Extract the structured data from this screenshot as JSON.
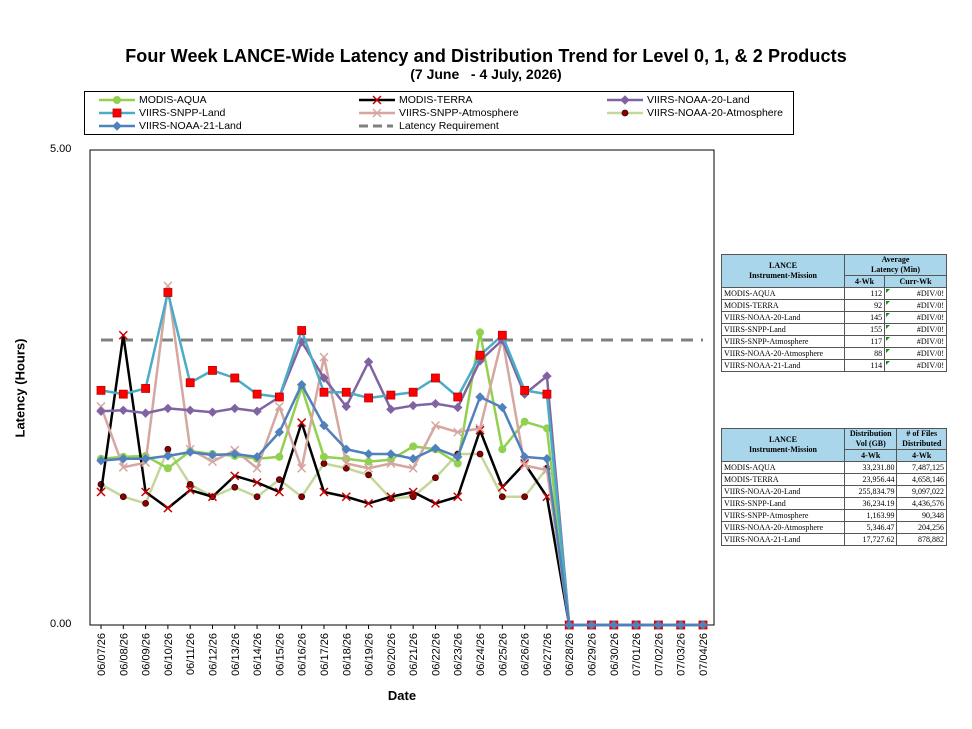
{
  "chart_data": {
    "type": "line",
    "title": "Four Week LANCE-Wide Latency and Distribution Trend for Level 0, 1, & 2 Products",
    "subtitle": "(7 June   - 4 July, 2026)",
    "xlabel": "Date",
    "ylabel": "Latency (Hours)",
    "ylim": [
      0,
      5
    ],
    "yticks": [
      "0.00",
      "5.00"
    ],
    "grid": false,
    "legend_position": "top",
    "categories": [
      "06/07/26",
      "06/08/26",
      "06/09/26",
      "06/10/26",
      "06/11/26",
      "06/12/26",
      "06/13/26",
      "06/14/26",
      "06/15/26",
      "06/16/26",
      "06/17/26",
      "06/18/26",
      "06/19/26",
      "06/20/26",
      "06/21/26",
      "06/22/26",
      "06/23/26",
      "06/24/26",
      "06/25/26",
      "06/26/26",
      "06/27/26",
      "06/28/26",
      "06/29/26",
      "06/30/26",
      "07/01/26",
      "07/02/26",
      "07/03/26",
      "07/04/26"
    ],
    "series": [
      {
        "name": "MODIS-AQUA",
        "color": "#92d050",
        "marker": "circle",
        "values": [
          1.75,
          1.77,
          1.78,
          1.65,
          1.83,
          1.8,
          1.78,
          1.75,
          1.77,
          2.5,
          1.77,
          1.75,
          1.72,
          1.74,
          1.88,
          1.85,
          1.7,
          3.08,
          1.85,
          2.14,
          2.07,
          0,
          0,
          0,
          0,
          0,
          0,
          0
        ]
      },
      {
        "name": "MODIS-TERRA",
        "color": "#000000",
        "marker": "x",
        "values": [
          1.4,
          3.05,
          1.4,
          1.23,
          1.42,
          1.35,
          1.57,
          1.5,
          1.4,
          2.13,
          1.4,
          1.35,
          1.28,
          1.35,
          1.4,
          1.28,
          1.35,
          2.05,
          1.45,
          1.7,
          1.35,
          0,
          0,
          0,
          0,
          0,
          0,
          0
        ]
      },
      {
        "name": "VIIRS-NOAA-20-Land",
        "color": "#8064a2",
        "marker": "diamond",
        "values": [
          2.25,
          2.26,
          2.23,
          2.28,
          2.26,
          2.24,
          2.28,
          2.25,
          2.4,
          2.98,
          2.6,
          2.3,
          2.77,
          2.27,
          2.31,
          2.33,
          2.29,
          2.78,
          3.0,
          2.43,
          2.62,
          0,
          0,
          0,
          0,
          0,
          0,
          0
        ]
      },
      {
        "name": "VIIRS-SNPP-Land",
        "color": "#4bacc6",
        "marker": "square",
        "values": [
          2.47,
          2.43,
          2.49,
          3.5,
          2.55,
          2.68,
          2.6,
          2.43,
          2.4,
          3.1,
          2.45,
          2.45,
          2.39,
          2.42,
          2.45,
          2.6,
          2.4,
          2.84,
          3.05,
          2.47,
          2.43,
          0,
          0,
          0,
          0,
          0,
          0,
          0
        ]
      },
      {
        "name": "VIIRS-SNPP-Atmosphere",
        "color": "#d6a6a0",
        "marker": "x",
        "values": [
          2.3,
          1.66,
          1.71,
          3.57,
          1.85,
          1.72,
          1.84,
          1.65,
          2.3,
          1.65,
          2.82,
          1.7,
          1.65,
          1.7,
          1.65,
          2.1,
          2.03,
          2.07,
          3.02,
          1.68,
          1.63,
          0,
          0,
          0,
          0,
          0,
          0,
          0
        ]
      },
      {
        "name": "VIIRS-NOAA-20-Atmosphere",
        "color": "#c4d79b",
        "marker": "circle-dark",
        "values": [
          1.48,
          1.35,
          1.28,
          1.85,
          1.48,
          1.35,
          1.45,
          1.35,
          1.53,
          1.35,
          1.7,
          1.65,
          1.58,
          1.33,
          1.35,
          1.55,
          1.8,
          1.8,
          1.35,
          1.35,
          1.65,
          0,
          0,
          0,
          0,
          0,
          0,
          0
        ]
      },
      {
        "name": "VIIRS-NOAA-21-Land",
        "color": "#4f81bd",
        "marker": "diamond",
        "values": [
          1.73,
          1.75,
          1.75,
          1.78,
          1.82,
          1.79,
          1.8,
          1.77,
          2.03,
          2.53,
          2.1,
          1.85,
          1.8,
          1.8,
          1.75,
          1.86,
          1.77,
          2.4,
          2.29,
          1.77,
          1.75,
          0,
          0,
          0,
          0,
          0,
          0,
          0
        ]
      },
      {
        "name": "Latency Requirement",
        "color": "#808080",
        "marker": "dash",
        "values": [
          3.0,
          3.0,
          3.0,
          3.0,
          3.0,
          3.0,
          3.0,
          3.0,
          3.0,
          3.0,
          3.0,
          3.0,
          3.0,
          3.0,
          3.0,
          3.0,
          3.0,
          3.0,
          3.0,
          3.0,
          3.0,
          3.0,
          3.0,
          3.0,
          3.0,
          3.0,
          3.0,
          3.0
        ]
      }
    ]
  },
  "legend": {
    "items": [
      {
        "label": "MODIS-AQUA",
        "series": 0
      },
      {
        "label": "MODIS-TERRA",
        "series": 1
      },
      {
        "label": "VIIRS-NOAA-20-Land",
        "series": 2
      },
      {
        "label": "VIIRS-SNPP-Land",
        "series": 3
      },
      {
        "label": "VIIRS-SNPP-Atmosphere",
        "series": 4
      },
      {
        "label": "VIIRS-NOAA-20-Atmosphere",
        "series": 5
      },
      {
        "label": "VIIRS-NOAA-21-Land",
        "series": 6
      },
      {
        "label": "Latency Requirement",
        "series": 7
      }
    ]
  },
  "latency_table": {
    "header_mission": [
      "LANCE",
      "Instrument-Mission"
    ],
    "header_avg": [
      "Average",
      "Latency (Min)"
    ],
    "sub_4wk": "4-Wk",
    "sub_curr": "Curr-Wk",
    "rows": [
      {
        "name": "MODIS-AQUA",
        "wk4": "112",
        "curr": "#DIV/0!"
      },
      {
        "name": "MODIS-TERRA",
        "wk4": "92",
        "curr": "#DIV/0!"
      },
      {
        "name": "VIIRS-NOAA-20-Land",
        "wk4": "145",
        "curr": "#DIV/0!"
      },
      {
        "name": "VIIRS-SNPP-Land",
        "wk4": "155",
        "curr": "#DIV/0!"
      },
      {
        "name": "VIIRS-SNPP-Atmosphere",
        "wk4": "117",
        "curr": "#DIV/0!"
      },
      {
        "name": "VIIRS-NOAA-20-Atmosphere",
        "wk4": "88",
        "curr": "#DIV/0!"
      },
      {
        "name": "VIIRS-NOAA-21-Land",
        "wk4": "114",
        "curr": "#DIV/0!"
      }
    ]
  },
  "distribution_table": {
    "header_mission": [
      "LANCE",
      "Instrument-Mission"
    ],
    "header_vol": [
      "Distribution",
      "Vol (GB)"
    ],
    "header_files": [
      "# of Files",
      "Distributed"
    ],
    "sub_vol": "4-Wk",
    "sub_files": "4-Wk",
    "rows": [
      {
        "name": "MODIS-AQUA",
        "vol": "33,231.80",
        "files": "7,487,125"
      },
      {
        "name": "MODIS-TERRA",
        "vol": "23,956.44",
        "files": "4,658,146"
      },
      {
        "name": "VIIRS-NOAA-20-Land",
        "vol": "255,834.79",
        "files": "9,097,022"
      },
      {
        "name": "VIIRS-SNPP-Land",
        "vol": "36,234.19",
        "files": "4,436,576"
      },
      {
        "name": "VIIRS-SNPP-Atmosphere",
        "vol": "1,163.99",
        "files": "90,348"
      },
      {
        "name": "VIIRS-NOAA-20-Atmosphere",
        "vol": "5,346.47",
        "files": "204,256"
      },
      {
        "name": "VIIRS-NOAA-21-Land",
        "vol": "17,727.62",
        "files": "878,882"
      }
    ]
  }
}
